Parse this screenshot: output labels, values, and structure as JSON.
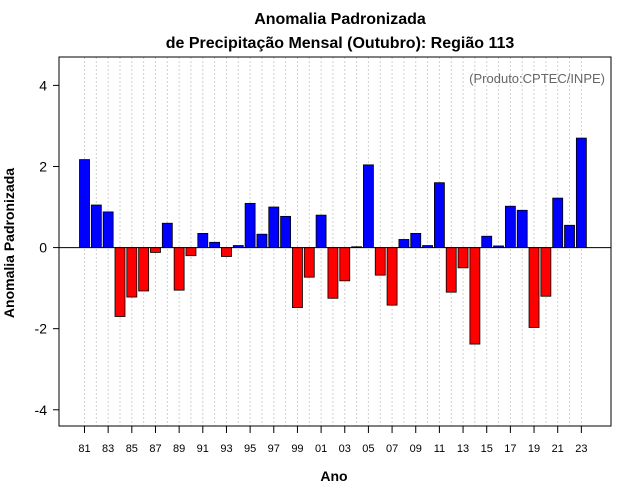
{
  "chart_data": {
    "type": "bar",
    "title_line1": "Anomalia Padronizada",
    "title_line2": "de Precipitação Mensal (Outubro): Região 113",
    "xlabel": "Ano",
    "ylabel": "Anomalia Padronizada",
    "credit": "(Produto:CPTEC/INPE)",
    "ylim": [
      -4.4,
      4.7
    ],
    "yticks": [
      -4,
      -2,
      0,
      2,
      4
    ],
    "xtick_labels": [
      "81",
      "83",
      "85",
      "87",
      "89",
      "91",
      "93",
      "95",
      "97",
      "99",
      "01",
      "03",
      "05",
      "07",
      "09",
      "11",
      "13",
      "15",
      "17",
      "19",
      "21",
      "23"
    ],
    "categories": [
      "1981",
      "1982",
      "1983",
      "1984",
      "1985",
      "1986",
      "1987",
      "1988",
      "1989",
      "1990",
      "1991",
      "1992",
      "1993",
      "1994",
      "1995",
      "1996",
      "1997",
      "1998",
      "1999",
      "2000",
      "2001",
      "2002",
      "2003",
      "2004",
      "2005",
      "2006",
      "2007",
      "2008",
      "2009",
      "2010",
      "2011",
      "2012",
      "2013",
      "2014",
      "2015",
      "2016",
      "2017",
      "2018",
      "2019",
      "2020",
      "2021",
      "2022",
      "2023"
    ],
    "values": [
      2.17,
      1.05,
      0.88,
      -1.7,
      -1.22,
      -1.07,
      -0.12,
      0.6,
      -1.05,
      -0.2,
      0.35,
      0.13,
      -0.22,
      0.05,
      1.09,
      0.33,
      1.0,
      0.77,
      -1.48,
      -0.73,
      0.8,
      -1.25,
      -0.82,
      0.02,
      2.04,
      -0.68,
      -1.42,
      0.2,
      0.35,
      0.05,
      1.6,
      -1.1,
      -0.5,
      -2.38,
      0.28,
      0.04,
      1.02,
      0.92,
      -1.97,
      -1.2,
      1.22,
      0.55,
      2.7
    ],
    "positive_color": "#0000ff",
    "negative_color": "#ff0000"
  }
}
